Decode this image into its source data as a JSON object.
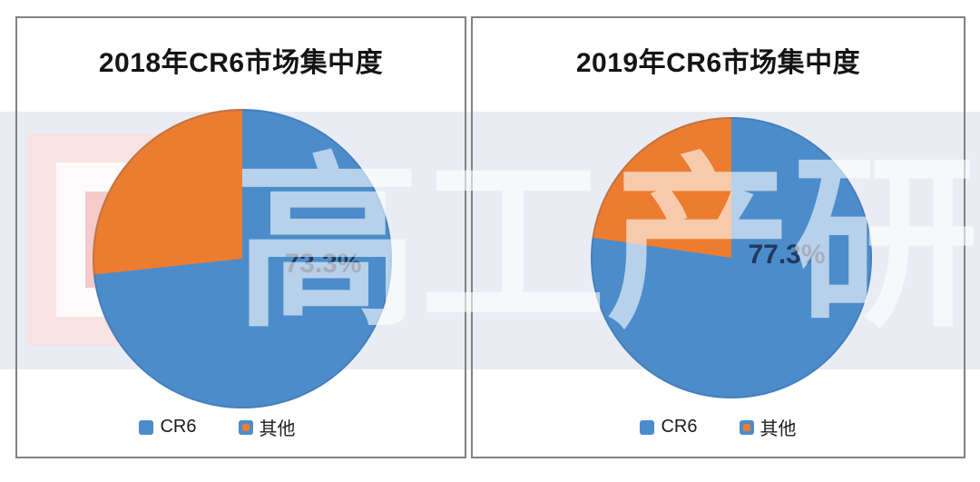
{
  "watermark": {
    "chars": [
      "高",
      "工",
      "产",
      "研"
    ],
    "band_color": "#e9edf3",
    "logo_colors": {
      "outer": "#f8e3e3",
      "ring_white": "#fcfafa",
      "inner": "#f4caca",
      "core_white": "#fbf6f6"
    }
  },
  "panel_border_color": "#828282",
  "chart_data": [
    {
      "type": "pie",
      "title": "2018年CR6市场集中度",
      "labels": [
        "CR6",
        "其他"
      ],
      "values": [
        73.3,
        26.7
      ],
      "unit": "%",
      "colors": [
        "#4c8ccb",
        "#ec7c30"
      ],
      "data_labels": [
        "73.3%"
      ],
      "start_angle_deg": 0,
      "direction": "clockwise",
      "legend_position": "bottom"
    },
    {
      "type": "pie",
      "title": "2019年CR6市场集中度",
      "labels": [
        "CR6",
        "其他"
      ],
      "values": [
        77.3,
        22.7
      ],
      "unit": "%",
      "colors": [
        "#4c8ccb",
        "#ec7c30"
      ],
      "data_labels": [
        "77.3%"
      ],
      "start_angle_deg": 0,
      "direction": "clockwise",
      "legend_position": "bottom"
    }
  ]
}
